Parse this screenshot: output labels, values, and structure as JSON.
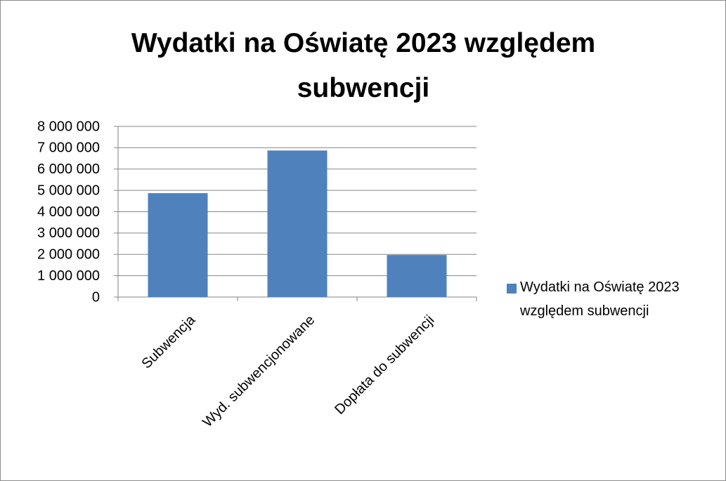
{
  "chart_data": {
    "type": "bar",
    "title": "Wydatki na Oświatę 2023 względem subwencji",
    "categories": [
      "Subwencja",
      "Wyd. subwencjonowane",
      "Dopłata do subwencji"
    ],
    "series": [
      {
        "name": "Wydatki na Oświatę 2023 względem subwencji",
        "color": "#4f81bd",
        "values": [
          4870000,
          6870000,
          1970000
        ]
      }
    ],
    "ylim": [
      0,
      8000000
    ],
    "yticks": [
      0,
      {
        "value": 1000000,
        "label": "1 000 000"
      },
      {
        "value": 2000000,
        "label": "2 000 000"
      },
      {
        "value": 3000000,
        "label": "3 000 000"
      },
      {
        "value": 4000000,
        "label": "4 000 000"
      },
      {
        "value": 5000000,
        "label": "5 000 000"
      },
      {
        "value": 6000000,
        "label": "6 000 000"
      },
      {
        "value": 7000000,
        "label": "7 000 000"
      },
      {
        "value": 8000000,
        "label": "8 000 000"
      }
    ],
    "grid": true,
    "legend": "right"
  }
}
